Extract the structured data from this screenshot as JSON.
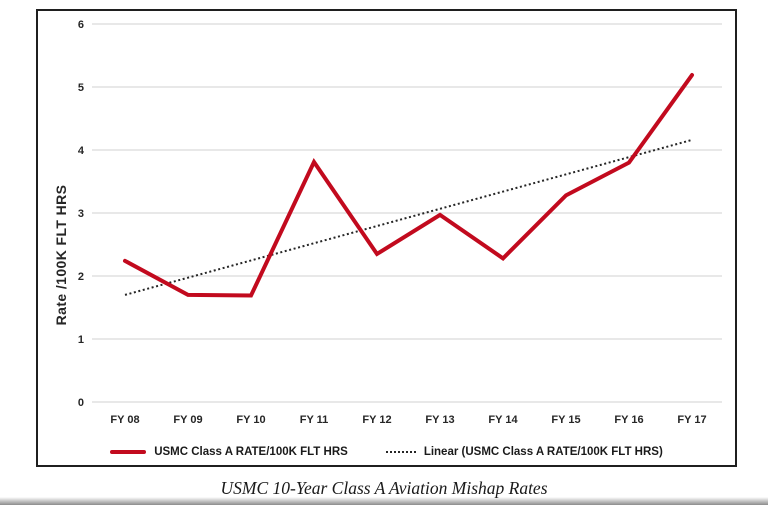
{
  "caption": {
    "text": "USMC 10-Year Class A Aviation Mishap Rates"
  },
  "colors": {
    "series_red": "#c20a1e",
    "trendline": "#262626",
    "gridline": "#d9d9d9",
    "frame_border": "#1f1f1f",
    "tick_text": "#262626"
  },
  "chart_data": {
    "type": "line",
    "title": "",
    "xlabel": "",
    "ylabel": "Rate /100K FLT HRS",
    "categories": [
      "FY 08",
      "FY 09",
      "FY 10",
      "FY 11",
      "FY 12",
      "FY 13",
      "FY 14",
      "FY 15",
      "FY 16",
      "FY 17"
    ],
    "series": [
      {
        "name": "USMC Class A RATE/100K FLT HRS",
        "color": "#c20a1e",
        "values": [
          2.24,
          1.7,
          1.69,
          3.81,
          2.35,
          2.97,
          2.28,
          3.28,
          3.8,
          5.19
        ]
      }
    ],
    "trendline": {
      "name": "Linear (USMC Class A RATE/100K FLT HRS)",
      "style": "dotted",
      "color": "#262626",
      "start": 1.7,
      "end": 4.16
    },
    "ylim": [
      0,
      6
    ],
    "y_ticks": [
      0,
      1,
      2,
      3,
      4,
      5,
      6
    ],
    "grid": "horizontal",
    "legend_position": "bottom-center",
    "legend": [
      "USMC Class A RATE/100K FLT HRS",
      "Linear (USMC Class A RATE/100K FLT HRS)"
    ]
  }
}
